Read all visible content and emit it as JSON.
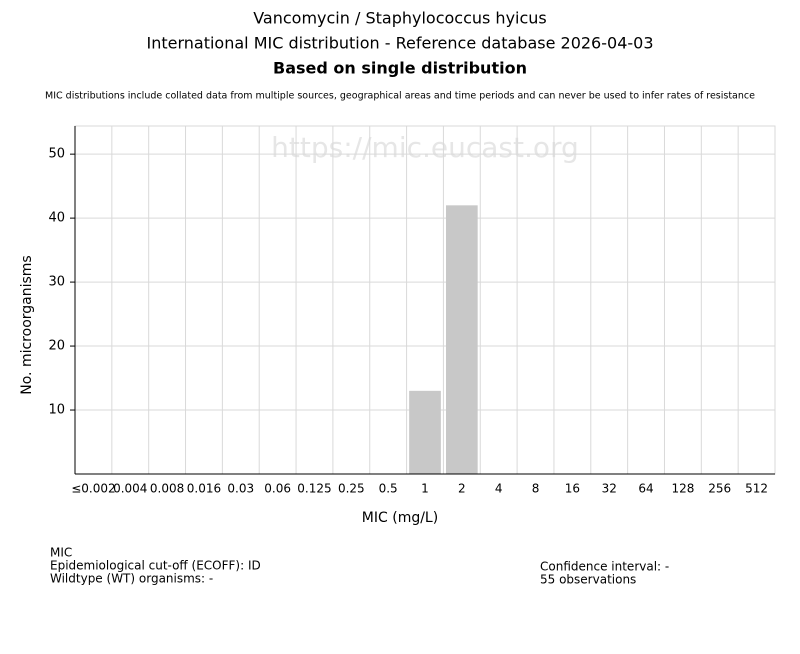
{
  "chart_data": {
    "type": "bar",
    "title": "Vancomycin / Staphylococcus hyicus",
    "subtitle": "International MIC distribution - Reference database 2026-04-03",
    "heading": "Based on single distribution",
    "note": "MIC distributions include collated data from multiple sources, geographical areas and time periods and can never be used to infer rates of resistance",
    "watermark": "https://mic.eucast.org",
    "xlabel": "MIC (mg/L)",
    "ylabel": "No. microorganisms",
    "categories": [
      "≤0.002",
      "0.004",
      "0.008",
      "0.016",
      "0.03",
      "0.06",
      "0.125",
      "0.25",
      "0.5",
      "1",
      "2",
      "4",
      "8",
      "16",
      "32",
      "64",
      "128",
      "256",
      "512"
    ],
    "values": [
      0,
      0,
      0,
      0,
      0,
      0,
      0,
      0,
      0,
      13,
      42,
      0,
      0,
      0,
      0,
      0,
      0,
      0,
      0
    ],
    "color": "#c8c8c8",
    "ylim": [
      0,
      54.4
    ],
    "yticks": [
      10,
      20,
      30,
      40,
      50
    ],
    "grid": true,
    "footer_left": [
      "MIC",
      "Epidemiological cut-off (ECOFF): ID",
      "Wildtype (WT) organisms:  -"
    ],
    "footer_right": [
      "Confidence interval: -",
      "55 observations"
    ]
  }
}
